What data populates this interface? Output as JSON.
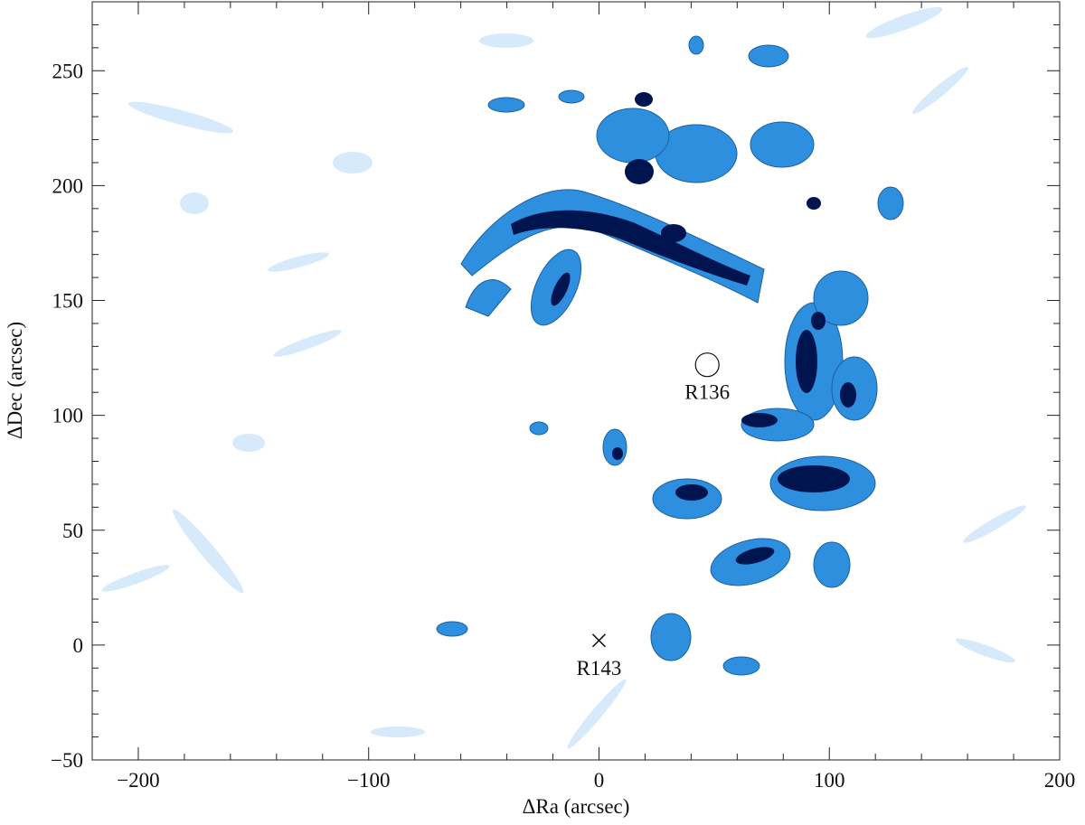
{
  "chart_data": {
    "type": "image",
    "xlabel": "ΔRa (arcsec)",
    "ylabel": "ΔDec (arcsec)",
    "xlim": [
      -220,
      200
    ],
    "ylim": [
      -50,
      280
    ],
    "xticks": [
      {
        "value": -200,
        "label": "−200"
      },
      {
        "value": -100,
        "label": "−100"
      },
      0,
      100,
      200
    ],
    "yticks": [
      {
        "value": -50,
        "label": "−50"
      },
      0,
      50,
      100,
      150,
      200,
      250
    ],
    "xminorticks": [
      -220,
      -180,
      -160,
      -140,
      -120,
      -80,
      -60,
      -40,
      -20,
      20,
      40,
      60,
      80,
      120,
      140,
      160,
      180
    ],
    "yminorticks": [
      -40,
      -30,
      -20,
      -10,
      10,
      20,
      30,
      40,
      60,
      70,
      80,
      90,
      110,
      120,
      130,
      140,
      160,
      170,
      180,
      190,
      210,
      220,
      230,
      240,
      260,
      270
    ],
    "annotations": [
      {
        "text": "R136",
        "x": 47,
        "y": 122,
        "marker": "circle"
      },
      {
        "text": "R143",
        "x": 0,
        "y": 2,
        "marker": "x"
      }
    ]
  }
}
